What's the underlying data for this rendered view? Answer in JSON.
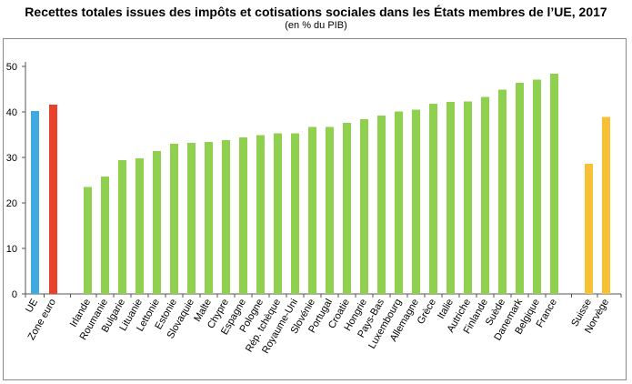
{
  "chart_data": {
    "type": "bar",
    "title": "Recettes totales issues des impôts et cotisations sociales dans les États membres de l’UE, 2017",
    "subtitle": "(en % du PIB)",
    "ylim": [
      0,
      50
    ],
    "yticks": [
      0,
      10,
      20,
      30,
      40,
      50
    ],
    "grid": false,
    "colors": {
      "ue": "#3fa9e0",
      "zone_euro": "#e8412c",
      "members": "#8fd14f",
      "efta": "#f7c136"
    },
    "categories": [
      "UE",
      "Zone euro",
      "Irlande",
      "Roumanie",
      "Bulgarie",
      "Lituanie",
      "Lettonie",
      "Estonie",
      "Slovaquie",
      "Malte",
      "Chypre",
      "Espagne",
      "Pologne",
      "Rép. tchèque",
      "Royaume-Uni",
      "Slovénie",
      "Portugal",
      "Croatie",
      "Hongrie",
      "Pays-Bas",
      "Luxembourg",
      "Allemagne",
      "Grèce",
      "Italie",
      "Autriche",
      "Finlande",
      "Suède",
      "Danemark",
      "Belgique",
      "France",
      "Suisse",
      "Norvège"
    ],
    "values": [
      40.2,
      41.6,
      23.5,
      25.8,
      29.4,
      29.8,
      31.4,
      33.0,
      33.2,
      33.4,
      33.8,
      34.4,
      34.9,
      35.3,
      35.3,
      36.7,
      36.7,
      37.6,
      38.4,
      39.2,
      40.1,
      40.5,
      41.8,
      42.2,
      42.3,
      43.3,
      44.9,
      46.4,
      47.1,
      48.4,
      28.6,
      38.9
    ],
    "groups": [
      "ue",
      "zone_euro",
      "members",
      "members",
      "members",
      "members",
      "members",
      "members",
      "members",
      "members",
      "members",
      "members",
      "members",
      "members",
      "members",
      "members",
      "members",
      "members",
      "members",
      "members",
      "members",
      "members",
      "members",
      "members",
      "members",
      "members",
      "members",
      "members",
      "members",
      "members",
      "efta",
      "efta"
    ]
  }
}
